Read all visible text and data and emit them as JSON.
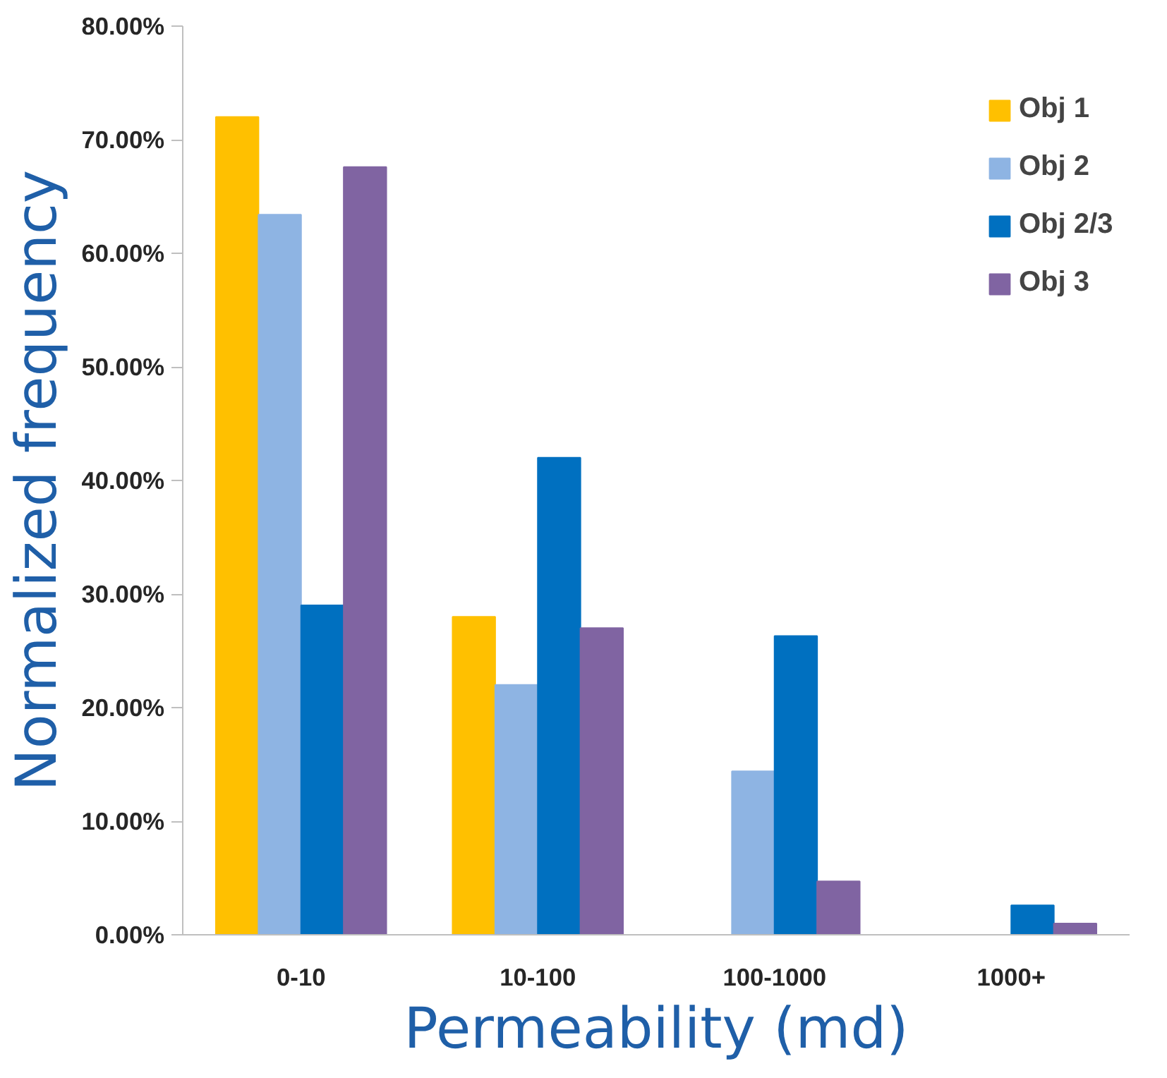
{
  "chart_data": {
    "type": "bar",
    "xlabel": "Permeability (md)",
    "ylabel": "Normalized frequency",
    "categories": [
      "0-10",
      "10-100",
      "100-1000",
      "1000+"
    ],
    "series": [
      {
        "name": "Obj 1",
        "color": "#ffc000",
        "values": [
          72,
          28,
          0,
          0
        ]
      },
      {
        "name": "Obj 2",
        "color": "#8eb4e3",
        "values": [
          63.4,
          22,
          14.4,
          0
        ]
      },
      {
        "name": "Obj 2/3",
        "color": "#0070c0",
        "values": [
          29,
          42,
          26.3,
          2.6
        ]
      },
      {
        "name": "Obj 3",
        "color": "#8064a2",
        "values": [
          67.6,
          27,
          4.7,
          1
        ]
      }
    ],
    "ylim": [
      0,
      80
    ],
    "yticks": [
      {
        "value": 0,
        "label": "0.00%"
      },
      {
        "value": 10,
        "label": "10.00%"
      },
      {
        "value": 20,
        "label": "20.00%"
      },
      {
        "value": 30,
        "label": "30.00%"
      },
      {
        "value": 40,
        "label": "40.00%"
      },
      {
        "value": 50,
        "label": "50.00%"
      },
      {
        "value": 60,
        "label": "60.00%"
      },
      {
        "value": 70,
        "label": "70.00%"
      },
      {
        "value": 80,
        "label": "80.00%"
      }
    ],
    "grid": false,
    "legend": "right"
  }
}
